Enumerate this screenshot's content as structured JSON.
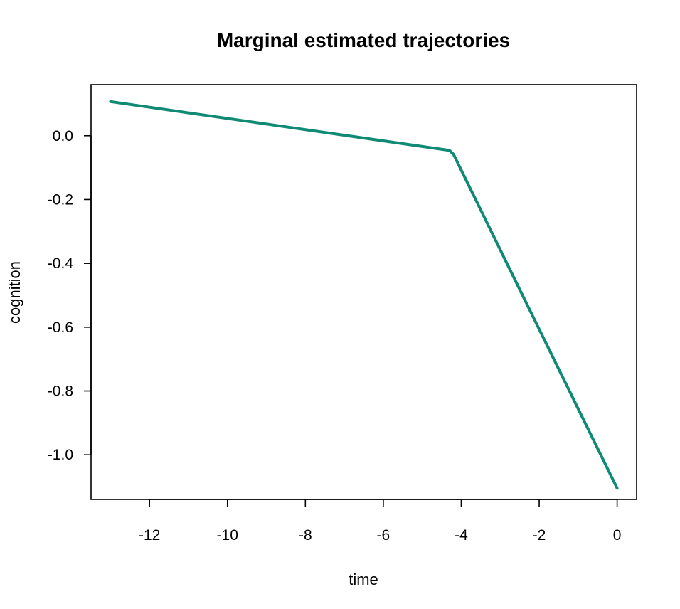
{
  "chart_data": {
    "type": "line",
    "title": "Marginal estimated trajectories",
    "xlabel": "time",
    "ylabel": "cognition",
    "xlim": [
      -13.5,
      0.5
    ],
    "ylim": [
      -1.14,
      0.16
    ],
    "xticks": [
      -12,
      -10,
      -8,
      -6,
      -4,
      -2,
      0
    ],
    "xtick_labels": [
      "-12",
      "-10",
      "-8",
      "-6",
      "-4",
      "-2",
      "0"
    ],
    "yticks": [
      0.0,
      -0.2,
      -0.4,
      -0.6,
      -0.8,
      -1.0
    ],
    "ytick_labels": [
      "0.0",
      "-0.2",
      "-0.4",
      "-0.6",
      "-0.8",
      "-1.0"
    ],
    "grid": false,
    "legend": "none",
    "series": [
      {
        "color": "#108a74",
        "x": [
          -13,
          -4.3,
          -4.2,
          0
        ],
        "y": [
          0.107,
          -0.046,
          -0.058,
          -1.105
        ]
      }
    ]
  }
}
